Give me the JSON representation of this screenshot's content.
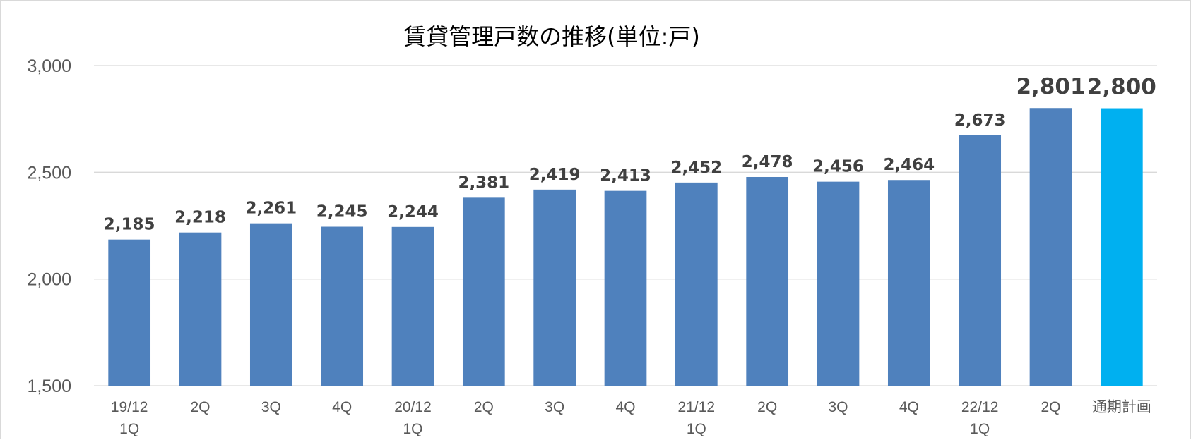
{
  "chart_data": {
    "type": "bar",
    "title": "賃貸管理戸数の推移(単位:戸)",
    "categories": [
      [
        "19/12",
        "1Q"
      ],
      [
        "2Q"
      ],
      [
        "3Q"
      ],
      [
        "4Q"
      ],
      [
        "20/12",
        "1Q"
      ],
      [
        "2Q"
      ],
      [
        "3Q"
      ],
      [
        "4Q"
      ],
      [
        "21/12",
        "1Q"
      ],
      [
        "2Q"
      ],
      [
        "3Q"
      ],
      [
        "4Q"
      ],
      [
        "22/12",
        "1Q"
      ],
      [
        "2Q"
      ],
      [
        "通期計画"
      ]
    ],
    "values": [
      2185,
      2218,
      2261,
      2245,
      2244,
      2381,
      2419,
      2413,
      2452,
      2478,
      2456,
      2464,
      2673,
      2801,
      2800
    ],
    "data_labels": [
      "2,185",
      "2,218",
      "2,261",
      "2,245",
      "2,244",
      "2,381",
      "2,419",
      "2,413",
      "2,452",
      "2,478",
      "2,456",
      "2,464",
      "2,673",
      "2,801",
      "2,800"
    ],
    "emphasized_labels": [
      13,
      14
    ],
    "bar_colors": [
      "#4f81bd",
      "#4f81bd",
      "#4f81bd",
      "#4f81bd",
      "#4f81bd",
      "#4f81bd",
      "#4f81bd",
      "#4f81bd",
      "#4f81bd",
      "#4f81bd",
      "#4f81bd",
      "#4f81bd",
      "#4f81bd",
      "#4f81bd",
      "#00b0f0"
    ],
    "ylim": [
      1500,
      3000
    ],
    "yticks": [
      1500,
      2000,
      2500,
      3000
    ],
    "ytick_labels": [
      "1,500",
      "2,000",
      "2,500",
      "3,000"
    ],
    "grid": true,
    "legend": "none"
  }
}
